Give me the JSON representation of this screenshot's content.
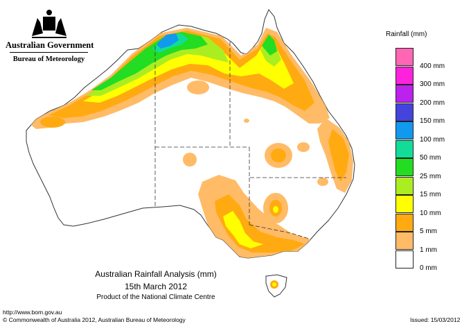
{
  "logo": {
    "government": "Australian Government",
    "bureau": "Bureau of Meteorology"
  },
  "legend": {
    "title": "Rainfall (mm)",
    "items": [
      {
        "label": "",
        "color": "#ff66b3"
      },
      {
        "label": "400 mm",
        "color": "#ff22dd"
      },
      {
        "label": "300 mm",
        "color": "#bb22ee"
      },
      {
        "label": "200 mm",
        "color": "#4444dd"
      },
      {
        "label": "150 mm",
        "color": "#1199ee"
      },
      {
        "label": "100 mm",
        "color": "#11dd99"
      },
      {
        "label": "50 mm",
        "color": "#22dd22"
      },
      {
        "label": "25 mm",
        "color": "#aaee22"
      },
      {
        "label": "15 mm",
        "color": "#ffff00"
      },
      {
        "label": "10 mm",
        "color": "#ffaa11"
      },
      {
        "label": "5 mm",
        "color": "#ffbb66"
      },
      {
        "label": "1 mm",
        "color": "#ffffff"
      },
      {
        "label": "0 mm",
        "color": ""
      }
    ]
  },
  "caption": {
    "title": "Australian Rainfall Analysis (mm)",
    "date": "15th March 2012",
    "product": "Product of the National Climate Centre"
  },
  "footer": {
    "url": "http://www.bom.gov.au",
    "copyright": "© Commonwealth of Australia 2012, Australian Bureau of Meteorology",
    "issued": "Issued: 15/03/2012"
  },
  "colors": {
    "outline": "#333333",
    "light_orange": "#ffbb66",
    "orange": "#ffaa11",
    "yellow": "#ffff00",
    "yellow_green": "#aaee22",
    "green": "#22dd22",
    "teal": "#11dd99",
    "sky": "#1199ee"
  }
}
